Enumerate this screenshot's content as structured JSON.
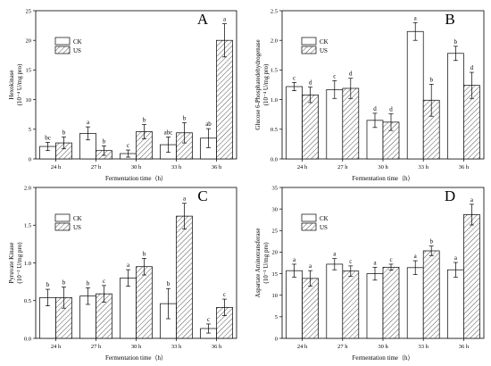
{
  "panels": [
    {
      "id": "A",
      "letter": "A",
      "ylabel": "Hexokinase",
      "yunit": "(10⁻⁴ U/mg pro)",
      "xlabel": "Fermentation time（h）",
      "legend": [
        "CK",
        "US"
      ],
      "categories": [
        "24 h",
        "27 h",
        "30 h",
        "33 h",
        "36 h"
      ],
      "yticks": [
        "0",
        "5",
        "10",
        "15",
        "20",
        "25"
      ],
      "ylim": [
        0,
        25
      ],
      "series": [
        {
          "name": "CK",
          "values": [
            2.1,
            4.3,
            0.9,
            2.4,
            3.5
          ],
          "errors": [
            0.7,
            1.1,
            0.6,
            1.3,
            1.6
          ],
          "letters": [
            "bc",
            "a",
            "c",
            "abc",
            "ab"
          ]
        },
        {
          "name": "US",
          "values": [
            2.7,
            1.4,
            4.6,
            4.4,
            20.0
          ],
          "errors": [
            1.0,
            0.8,
            1.2,
            1.7,
            2.8
          ],
          "letters": [
            "b",
            "b",
            "b",
            "b",
            "a"
          ]
        }
      ]
    },
    {
      "id": "B",
      "letter": "B",
      "ylabel": "Glucose 6-Phosphatedehydrogenase",
      "yunit": "(10⁻⁴ U/mg pro)",
      "xlabel": "Fermentation time（h）",
      "legend": [
        "CK",
        "US"
      ],
      "categories": [
        "24 h",
        "27 h",
        "30 h",
        "33 h",
        "36 h"
      ],
      "yticks": [
        "0.0",
        "0.5",
        "1.0",
        "1.5",
        "2.0",
        "2.5"
      ],
      "ylim": [
        0,
        2.5
      ],
      "series": [
        {
          "name": "CK",
          "values": [
            1.22,
            1.17,
            0.65,
            2.15,
            1.78
          ],
          "errors": [
            0.07,
            0.15,
            0.12,
            0.15,
            0.12
          ],
          "letters": [
            "c",
            "c",
            "d",
            "a",
            "b"
          ]
        },
        {
          "name": "US",
          "values": [
            1.08,
            1.19,
            0.62,
            0.99,
            1.24
          ],
          "errors": [
            0.13,
            0.17,
            0.14,
            0.27,
            0.22
          ],
          "letters": [
            "d",
            "d",
            "d",
            "b",
            "d"
          ]
        }
      ]
    },
    {
      "id": "C",
      "letter": "C",
      "ylabel": "Pyruvate Kinase",
      "yunit": "(10⁻² U/mg pro)",
      "xlabel": "Fermentation time（h）",
      "legend": [
        "CK",
        "US"
      ],
      "categories": [
        "24 h",
        "27 h",
        "30 h",
        "33 h",
        "36 h"
      ],
      "yticks": [
        "0.0",
        "0.5",
        "1.0",
        "1.5",
        "2.0"
      ],
      "ylim": [
        0,
        2.0
      ],
      "series": [
        {
          "name": "CK",
          "values": [
            0.54,
            0.56,
            0.8,
            0.46,
            0.13
          ],
          "errors": [
            0.11,
            0.11,
            0.11,
            0.2,
            0.06
          ],
          "letters": [
            "b",
            "b",
            "a",
            "b",
            "c"
          ]
        },
        {
          "name": "US",
          "values": [
            0.54,
            0.59,
            0.95,
            1.62,
            0.41
          ],
          "errors": [
            0.14,
            0.11,
            0.11,
            0.17,
            0.11
          ],
          "letters": [
            "b",
            "c",
            "b",
            "a",
            "c"
          ]
        }
      ]
    },
    {
      "id": "D",
      "letter": "D",
      "ylabel": "Aspartate Aminotransferase",
      "yunit": "(10⁻¹ U/mg pro)",
      "xlabel": "Fermentation time（h）",
      "legend": [
        "CK",
        "US"
      ],
      "categories": [
        "24 h",
        "27 h",
        "30 h",
        "33 h",
        "36 h"
      ],
      "yticks": [
        "0",
        "5",
        "10",
        "15",
        "20",
        "25",
        "30",
        "35"
      ],
      "ylim": [
        0,
        35
      ],
      "series": [
        {
          "name": "CK",
          "values": [
            15.7,
            17.2,
            15.0,
            16.4,
            15.9
          ],
          "errors": [
            1.5,
            1.3,
            1.5,
            1.6,
            1.7
          ],
          "letters": [
            "a",
            "a",
            "a",
            "a",
            "a"
          ]
        },
        {
          "name": "US",
          "values": [
            13.9,
            15.6,
            16.5,
            20.3,
            28.7
          ],
          "errors": [
            1.8,
            1.2,
            0.7,
            1.1,
            2.4
          ],
          "letters": [
            "a",
            "c",
            "c",
            "b",
            "a"
          ]
        }
      ]
    }
  ],
  "chart_data": [
    {
      "type": "bar",
      "ylabel": "Hexokinase (10⁻⁴ U/mg pro)",
      "xlabel": "Fermentation time（h）",
      "categories": [
        "24 h",
        "27 h",
        "30 h",
        "33 h",
        "36 h"
      ],
      "ylim": [
        0,
        25
      ],
      "series": [
        {
          "name": "CK",
          "values": [
            2.1,
            4.3,
            0.9,
            2.4,
            3.5
          ]
        },
        {
          "name": "US",
          "values": [
            2.7,
            1.4,
            4.6,
            4.4,
            20.0
          ]
        }
      ],
      "legend": "top-left",
      "grid": false
    },
    {
      "type": "bar",
      "ylabel": "Glucose 6-Phosphatedehydrogenase (10⁻⁴ U/mg pro)",
      "xlabel": "Fermentation time（h）",
      "categories": [
        "24 h",
        "27 h",
        "30 h",
        "33 h",
        "36 h"
      ],
      "ylim": [
        0,
        2.5
      ],
      "series": [
        {
          "name": "CK",
          "values": [
            1.22,
            1.17,
            0.65,
            2.15,
            1.78
          ]
        },
        {
          "name": "US",
          "values": [
            1.08,
            1.19,
            0.62,
            0.99,
            1.24
          ]
        }
      ],
      "legend": "top-left",
      "grid": false
    },
    {
      "type": "bar",
      "ylabel": "Pyruvate Kinase (10⁻² U/mg pro)",
      "xlabel": "Fermentation time（h）",
      "categories": [
        "24 h",
        "27 h",
        "30 h",
        "33 h",
        "36 h"
      ],
      "ylim": [
        0,
        2.0
      ],
      "series": [
        {
          "name": "CK",
          "values": [
            0.54,
            0.56,
            0.8,
            0.46,
            0.13
          ]
        },
        {
          "name": "US",
          "values": [
            0.54,
            0.59,
            0.95,
            1.62,
            0.41
          ]
        }
      ],
      "legend": "top-left",
      "grid": false
    },
    {
      "type": "bar",
      "ylabel": "Aspartate Aminotransferase (10⁻¹ U/mg pro)",
      "xlabel": "Fermentation time（h）",
      "categories": [
        "24 h",
        "27 h",
        "30 h",
        "33 h",
        "36 h"
      ],
      "ylim": [
        0,
        35
      ],
      "series": [
        {
          "name": "CK",
          "values": [
            15.7,
            17.2,
            15.0,
            16.4,
            15.9
          ]
        },
        {
          "name": "US",
          "values": [
            13.9,
            15.6,
            16.5,
            20.3,
            28.7
          ]
        }
      ],
      "legend": "top-left",
      "grid": false
    }
  ]
}
